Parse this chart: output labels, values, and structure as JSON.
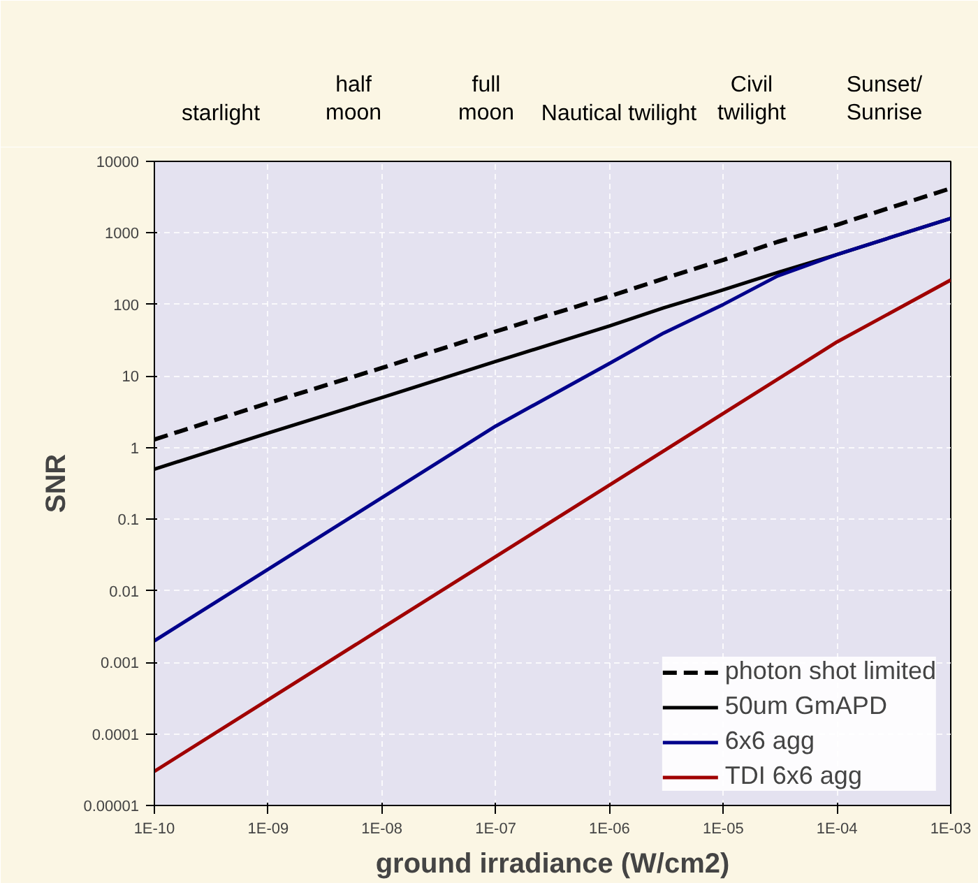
{
  "chart_data": {
    "type": "line",
    "xlabel": "ground irradiance (W/cm2)",
    "ylabel": "SNR",
    "x": [
      1e-10,
      1e-09,
      1e-08,
      1e-07,
      1e-06,
      3e-06,
      1e-05,
      3e-05,
      0.0001,
      0.001
    ],
    "series": [
      {
        "name": "photon shot limited",
        "color": "#000000",
        "line_style": "dashed",
        "values": [
          1.3,
          4.2,
          13,
          42,
          130,
          230,
          420,
          750,
          1300,
          4200
        ]
      },
      {
        "name": "50um GmAPD",
        "color": "#000000",
        "line_style": "solid",
        "values": [
          0.5,
          1.6,
          5,
          16,
          50,
          90,
          160,
          280,
          500,
          1600
        ]
      },
      {
        "name": "6x6 agg",
        "color": "#00008b",
        "line_style": "solid",
        "values": [
          0.002,
          0.02,
          0.2,
          2,
          15,
          40,
          100,
          250,
          500,
          1600
        ]
      },
      {
        "name": "TDI 6x6 agg",
        "color": "#a00000",
        "line_style": "solid",
        "values": [
          3e-05,
          null,
          0.003,
          null,
          0.3,
          null,
          3,
          null,
          30,
          220
        ]
      }
    ],
    "log": "xy",
    "grid": true,
    "legend": "bottom right",
    "marker": "none",
    "xlim": [
      1e-10,
      0.001
    ],
    "ylim": [
      1e-05,
      10000.0
    ],
    "xticks": [
      {
        "value": 1e-10,
        "label": "1E-10"
      },
      {
        "value": 1e-09,
        "label": "1E-09"
      },
      {
        "value": 1e-08,
        "label": "1E-08"
      },
      {
        "value": 1e-07,
        "label": "1E-07"
      },
      {
        "value": 1e-06,
        "label": "1E-06"
      },
      {
        "value": 1e-05,
        "label": "1E-05"
      },
      {
        "value": 0.0001,
        "label": "1E-04"
      },
      {
        "value": 0.001,
        "label": "1E-03"
      }
    ],
    "yticks": [
      {
        "value": 1e-05,
        "label": "0.00001"
      },
      {
        "value": 0.0001,
        "label": "0.0001"
      },
      {
        "value": 0.001,
        "label": "0.001"
      },
      {
        "value": 0.01,
        "label": "0.01"
      },
      {
        "value": 0.1,
        "label": "0.1"
      },
      {
        "value": 1,
        "label": "1"
      },
      {
        "value": 10,
        "label": "10"
      },
      {
        "value": 100,
        "label": "100"
      },
      {
        "value": 1000,
        "label": "1000"
      },
      {
        "value": 10000,
        "label": "10000"
      }
    ],
    "annotations": [
      "starlight",
      "half\nmoon",
      "full\nmoon",
      "Nautical twilight",
      "Civil\ntwilight",
      "Sunset/\nSunrise"
    ]
  }
}
